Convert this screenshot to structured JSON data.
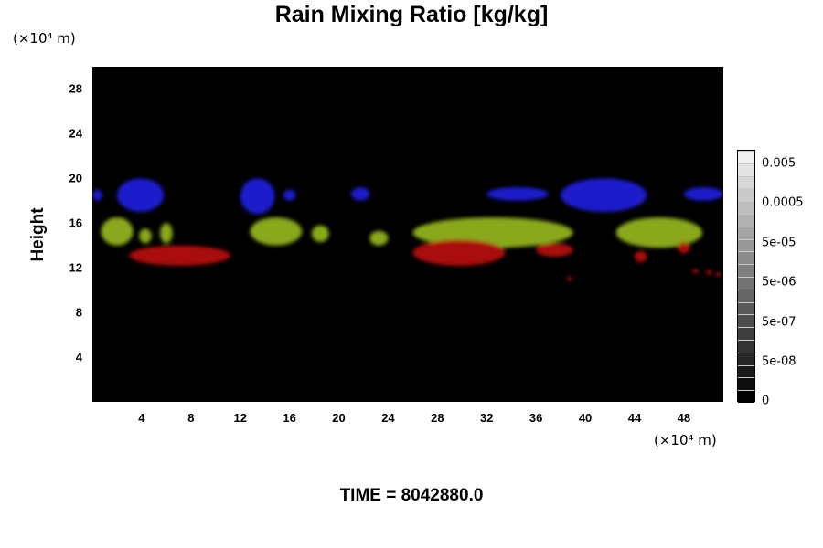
{
  "chart_data": {
    "type": "heatmap",
    "title": "Rain Mixing Ratio [kg/kg]",
    "ylabel": "Height",
    "xlabel": "",
    "x_unit": "(×10⁴ m)",
    "y_unit": "(×10⁴ m)",
    "x_ticks": [
      "4",
      "8",
      "12",
      "16",
      "20",
      "24",
      "28",
      "32",
      "36",
      "40",
      "44",
      "48"
    ],
    "y_ticks": [
      "4",
      "8",
      "12",
      "16",
      "20",
      "24",
      "28"
    ],
    "xlim": [
      0,
      51.2
    ],
    "ylim": [
      0,
      30
    ],
    "colorbar_labels": [
      "0.005",
      "0.0005",
      "5e-05",
      "5e-06",
      "5e-07",
      "5e-08",
      "0"
    ],
    "colorbar_levels": 20,
    "grid": false,
    "background": "#000000",
    "layers": [
      {
        "color": "#1a1acc",
        "blobs": [
          {
            "x0": 0.0,
            "x1": 0.8,
            "y0": 18.0,
            "y1": 19.0
          },
          {
            "x0": 2.0,
            "x1": 5.8,
            "y0": 17.0,
            "y1": 20.0
          },
          {
            "x0": 12.0,
            "x1": 14.8,
            "y0": 16.8,
            "y1": 20.0
          },
          {
            "x0": 15.5,
            "x1": 16.5,
            "y0": 18.0,
            "y1": 19.0
          },
          {
            "x0": 21.0,
            "x1": 22.5,
            "y0": 18.0,
            "y1": 19.2
          },
          {
            "x0": 32.0,
            "x1": 37.0,
            "y0": 18.0,
            "y1": 19.2
          },
          {
            "x0": 38.0,
            "x1": 45.0,
            "y0": 17.0,
            "y1": 20.0
          },
          {
            "x0": 48.0,
            "x1": 51.2,
            "y0": 18.0,
            "y1": 19.2
          }
        ]
      },
      {
        "color": "#8aa81e",
        "blobs": [
          {
            "x0": 0.7,
            "x1": 3.3,
            "y0": 14.0,
            "y1": 16.5
          },
          {
            "x0": 3.8,
            "x1": 4.8,
            "y0": 14.2,
            "y1": 15.5
          },
          {
            "x0": 5.5,
            "x1": 6.5,
            "y0": 14.2,
            "y1": 16.0
          },
          {
            "x0": 12.8,
            "x1": 17.0,
            "y0": 14.0,
            "y1": 16.5
          },
          {
            "x0": 17.8,
            "x1": 19.2,
            "y0": 14.3,
            "y1": 15.8
          },
          {
            "x0": 22.5,
            "x1": 24.0,
            "y0": 14.0,
            "y1": 15.3
          },
          {
            "x0": 26.0,
            "x1": 39.0,
            "y0": 13.8,
            "y1": 16.5
          },
          {
            "x0": 42.5,
            "x1": 49.5,
            "y0": 13.8,
            "y1": 16.5
          }
        ]
      },
      {
        "color": "#aa1010",
        "blobs": [
          {
            "x0": 3.0,
            "x1": 11.2,
            "y0": 12.2,
            "y1": 14.0
          },
          {
            "x0": 26.0,
            "x1": 33.5,
            "y0": 12.2,
            "y1": 14.5
          },
          {
            "x0": 36.0,
            "x1": 39.0,
            "y0": 13.0,
            "y1": 14.2
          },
          {
            "x0": 44.0,
            "x1": 45.0,
            "y0": 12.5,
            "y1": 13.5
          },
          {
            "x0": 47.5,
            "x1": 48.5,
            "y0": 13.3,
            "y1": 14.3
          },
          {
            "x0": 38.5,
            "x1": 38.9,
            "y0": 10.8,
            "y1": 11.2
          },
          {
            "x0": 48.7,
            "x1": 49.2,
            "y0": 11.5,
            "y1": 11.9
          },
          {
            "x0": 49.8,
            "x1": 50.3,
            "y0": 11.4,
            "y1": 11.8
          },
          {
            "x0": 50.6,
            "x1": 51.0,
            "y0": 11.2,
            "y1": 11.6
          }
        ]
      }
    ]
  },
  "footer": {
    "time_label": "TIME = 8042880.0"
  }
}
